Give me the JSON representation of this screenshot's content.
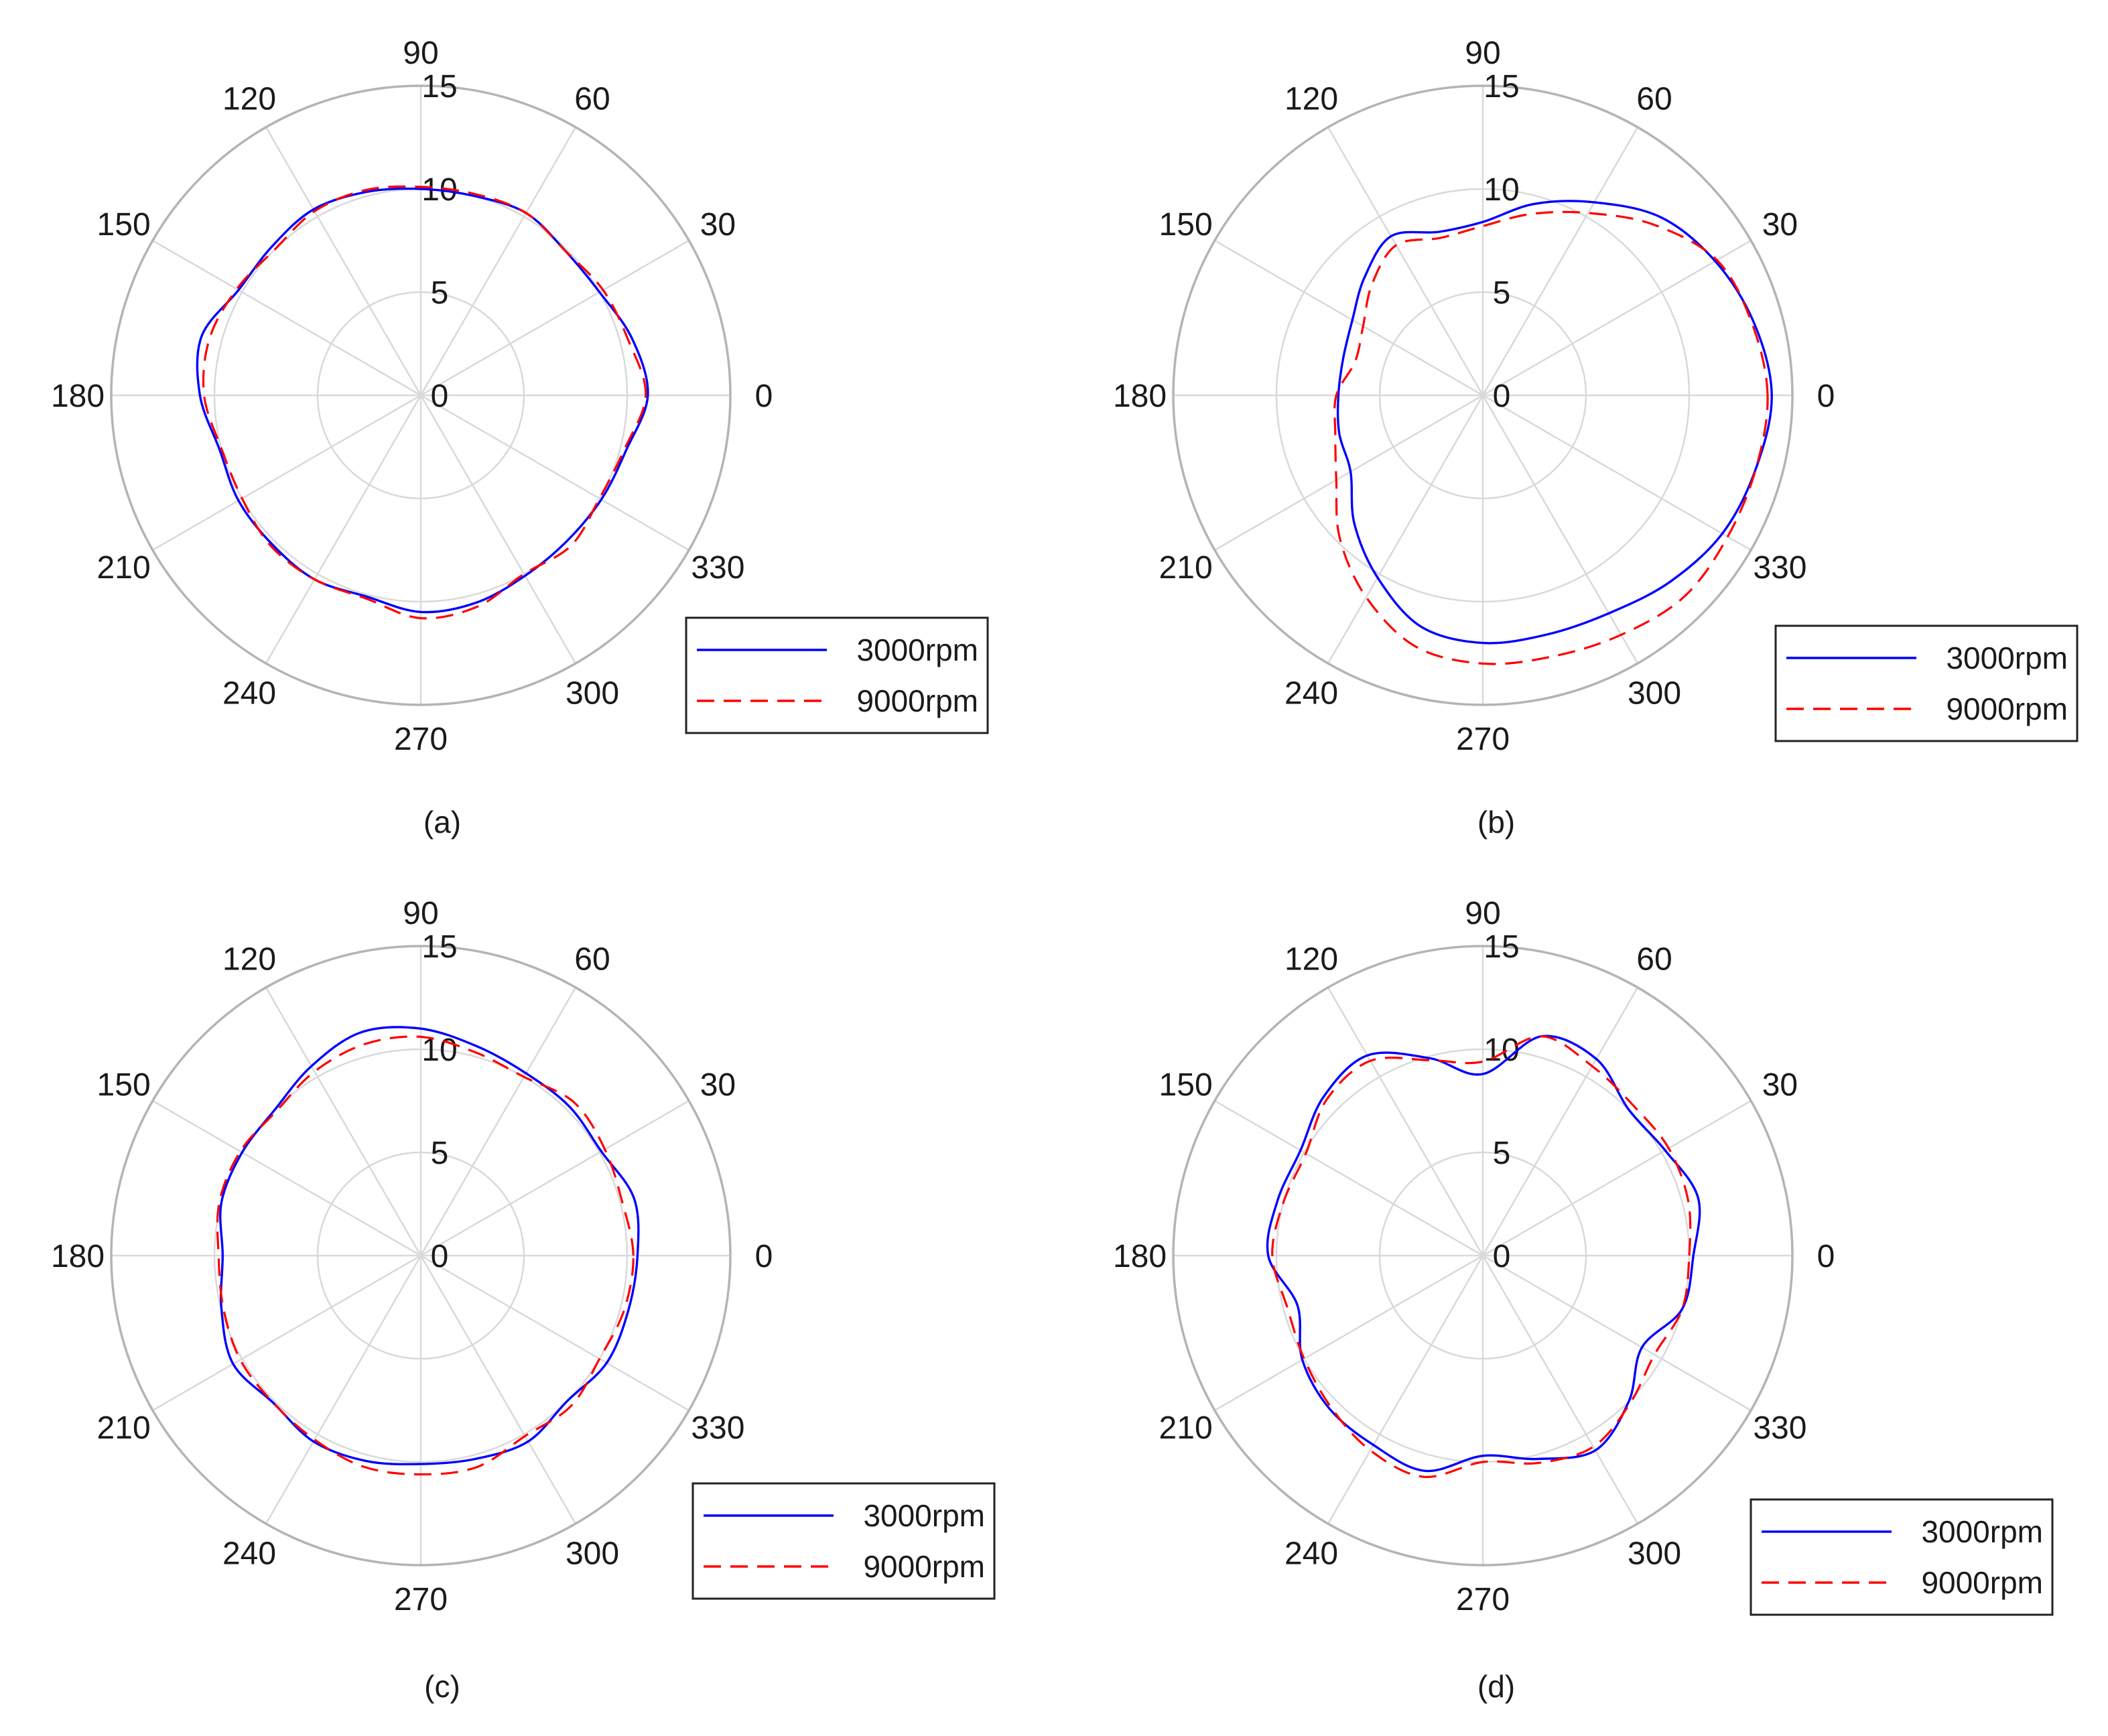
{
  "chart_data": [
    {
      "type": "polar-line",
      "caption": "(a)",
      "angular_ticks": [
        "0",
        "30",
        "60",
        "90",
        "120",
        "150",
        "180",
        "210",
        "240",
        "270",
        "300",
        "330"
      ],
      "radial_ticks": [
        "0",
        "5",
        "10",
        "15"
      ],
      "rlim": [
        0,
        15
      ],
      "grid": true,
      "legend_position": "bottom-right",
      "theta_deg": [
        0,
        15,
        30,
        45,
        60,
        75,
        90,
        105,
        120,
        135,
        150,
        165,
        180,
        195,
        210,
        225,
        240,
        255,
        270,
        285,
        300,
        315,
        330,
        345
      ],
      "series": [
        {
          "name": "3000rpm",
          "color": "#0000ff",
          "style": "solid",
          "r": [
            11.0,
            10.6,
            10.0,
            9.9,
            10.2,
            10.0,
            10.0,
            10.2,
            10.4,
            10.2,
            10.2,
            11.0,
            10.7,
            10.1,
            10.2,
            10.2,
            10.3,
            10.1,
            10.5,
            10.4,
            10.1,
            10.0,
            10.1,
            10.3
          ]
        },
        {
          "name": "9000rpm",
          "color": "#ff0000",
          "style": "dashed",
          "r": [
            10.9,
            10.4,
            10.2,
            9.9,
            10.2,
            10.1,
            10.1,
            10.3,
            10.3,
            10.0,
            10.3,
            10.6,
            10.5,
            10.0,
            10.0,
            10.3,
            10.3,
            10.2,
            10.8,
            10.6,
            10.0,
            10.3,
            10.0,
            10.2
          ]
        }
      ]
    },
    {
      "type": "polar-line",
      "caption": "(b)",
      "angular_ticks": [
        "0",
        "30",
        "60",
        "90",
        "120",
        "150",
        "180",
        "210",
        "240",
        "270",
        "300",
        "330"
      ],
      "radial_ticks": [
        "0",
        "5",
        "10",
        "15"
      ],
      "rlim": [
        0,
        15
      ],
      "grid": true,
      "legend_position": "bottom-right",
      "theta_deg": [
        0,
        15,
        30,
        45,
        60,
        75,
        90,
        105,
        120,
        135,
        150,
        165,
        180,
        195,
        210,
        225,
        240,
        255,
        270,
        285,
        300,
        315,
        330,
        345
      ],
      "series": [
        {
          "name": "3000rpm",
          "color": "#0000ff",
          "style": "solid",
          "r": [
            14.0,
            13.6,
            13.0,
            12.2,
            10.8,
            9.6,
            8.4,
            8.2,
            8.9,
            8.1,
            7.3,
            7.0,
            7.0,
            7.2,
            7.4,
            8.8,
            10.2,
            11.6,
            12.0,
            12.0,
            12.2,
            12.8,
            13.4,
            13.7
          ]
        },
        {
          "name": "9000rpm",
          "color": "#ff0000",
          "style": "dashed",
          "r": [
            13.8,
            13.5,
            13.1,
            11.7,
            10.2,
            9.1,
            8.2,
            7.9,
            8.4,
            7.6,
            6.7,
            6.4,
            7.1,
            7.4,
            8.2,
            9.8,
            11.3,
            12.6,
            13.0,
            13.1,
            13.4,
            13.8,
            13.7,
            13.7
          ]
        }
      ]
    },
    {
      "type": "polar-line",
      "caption": "(c)",
      "angular_ticks": [
        "0",
        "30",
        "60",
        "90",
        "120",
        "150",
        "180",
        "210",
        "240",
        "270",
        "300",
        "330"
      ],
      "radial_ticks": [
        "0",
        "5",
        "10",
        "15"
      ],
      "rlim": [
        0,
        15
      ],
      "grid": true,
      "legend_position": "bottom-right",
      "theta_deg": [
        0,
        15,
        30,
        45,
        60,
        75,
        90,
        105,
        120,
        135,
        150,
        165,
        180,
        195,
        210,
        225,
        240,
        255,
        270,
        285,
        300,
        315,
        330,
        345
      ],
      "series": [
        {
          "name": "3000rpm",
          "color": "#0000ff",
          "style": "solid",
          "r": [
            10.5,
            10.7,
            10.1,
            10.2,
            10.2,
            10.5,
            11.0,
            11.2,
            10.6,
            10.0,
            10.0,
            10.0,
            9.6,
            10.0,
            10.5,
            10.1,
            10.4,
            10.3,
            10.1,
            10.2,
            10.4,
            10.0,
            10.4,
            10.4
          ]
        },
        {
          "name": "9000rpm",
          "color": "#ff0000",
          "style": "dashed",
          "r": [
            10.3,
            10.1,
            10.3,
            10.5,
            10.0,
            10.2,
            10.6,
            10.6,
            10.3,
            9.9,
            10.1,
            10.1,
            9.8,
            9.9,
            10.1,
            10.1,
            10.3,
            10.6,
            10.6,
            10.6,
            10.1,
            10.3,
            10.0,
            10.2
          ]
        }
      ]
    },
    {
      "type": "polar-line",
      "caption": "(d)",
      "angular_ticks": [
        "0",
        "30",
        "60",
        "90",
        "120",
        "150",
        "180",
        "210",
        "240",
        "270",
        "300",
        "330"
      ],
      "radial_ticks": [
        "0",
        "5",
        "10",
        "15"
      ],
      "rlim": [
        0,
        15
      ],
      "grid": true,
      "legend_position": "bottom-right",
      "theta_deg": [
        0,
        15,
        30,
        45,
        60,
        75,
        90,
        105,
        120,
        135,
        150,
        165,
        180,
        195,
        210,
        225,
        240,
        255,
        270,
        285,
        300,
        315,
        330,
        345
      ],
      "series": [
        {
          "name": "3000rpm",
          "color": "#0000ff",
          "style": "solid",
          "r": [
            10.2,
            10.8,
            10.2,
            10.0,
            11.0,
            11.0,
            8.8,
            9.9,
            11.2,
            10.9,
            10.2,
            10.3,
            10.4,
            9.3,
            10.1,
            10.5,
            10.6,
            10.8,
            9.7,
            10.2,
            10.9,
            10.0,
            8.9,
            10.0
          ]
        },
        {
          "name": "9000rpm",
          "color": "#ff0000",
          "style": "dashed",
          "r": [
            10.0,
            10.3,
            10.4,
            10.3,
            10.6,
            11.0,
            9.4,
            9.8,
            10.9,
            10.7,
            9.9,
            10.0,
            10.2,
            9.8,
            10.0,
            10.4,
            10.9,
            11.1,
            10.0,
            10.4,
            10.7,
            10.1,
            9.6,
            10.0
          ]
        }
      ]
    }
  ]
}
